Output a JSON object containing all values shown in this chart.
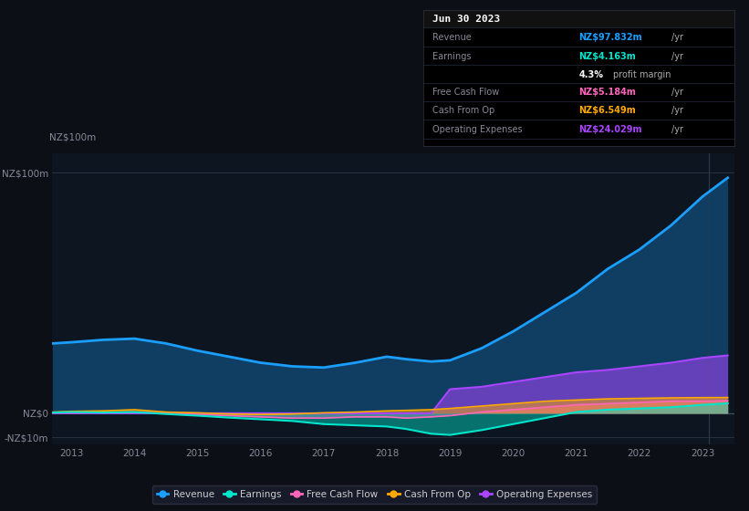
{
  "bg_color": "#0c1016",
  "chart_bg": "#0d1520",
  "info_bg": "#000000",
  "title": "Jun 30 2023",
  "info_box_rows": [
    {
      "label": "Revenue",
      "value": "NZ$97.832m",
      "suffix": " /yr",
      "value_color": "#1a9fff"
    },
    {
      "label": "Earnings",
      "value": "NZ$4.163m",
      "suffix": " /yr",
      "value_color": "#00e5cc"
    },
    {
      "label": "",
      "value": "4.3%",
      "suffix": " profit margin",
      "value_color": "#ffffff"
    },
    {
      "label": "Free Cash Flow",
      "value": "NZ$5.184m",
      "suffix": " /yr",
      "value_color": "#ff66bb"
    },
    {
      "label": "Cash From Op",
      "value": "NZ$6.549m",
      "suffix": " /yr",
      "value_color": "#ffaa00"
    },
    {
      "label": "Operating Expenses",
      "value": "NZ$24.029m",
      "suffix": " /yr",
      "value_color": "#aa44ff"
    }
  ],
  "years": [
    2012.7,
    2013.0,
    2013.5,
    2014.0,
    2014.5,
    2015.0,
    2015.5,
    2016.0,
    2016.5,
    2017.0,
    2017.5,
    2018.0,
    2018.3,
    2018.7,
    2019.0,
    2019.5,
    2020.0,
    2020.5,
    2021.0,
    2021.5,
    2022.0,
    2022.5,
    2023.0,
    2023.4
  ],
  "revenue": [
    29.0,
    29.5,
    30.5,
    31.0,
    29.0,
    26.0,
    23.5,
    21.0,
    19.5,
    19.0,
    21.0,
    23.5,
    22.5,
    21.5,
    22.0,
    27.0,
    34.0,
    42.0,
    50.0,
    60.0,
    68.0,
    78.0,
    90.0,
    97.832
  ],
  "earnings": [
    0.3,
    0.5,
    0.3,
    0.5,
    -0.3,
    -1.0,
    -1.8,
    -2.5,
    -3.2,
    -4.5,
    -5.0,
    -5.5,
    -6.5,
    -8.5,
    -9.0,
    -7.0,
    -4.5,
    -2.0,
    0.5,
    1.5,
    2.0,
    2.5,
    3.5,
    4.163
  ],
  "fcf": [
    0.2,
    0.2,
    0.3,
    0.5,
    0.0,
    -0.5,
    -1.0,
    -1.5,
    -2.0,
    -2.0,
    -1.5,
    -1.5,
    -2.0,
    -1.5,
    -1.0,
    0.5,
    1.5,
    2.5,
    3.5,
    4.0,
    4.5,
    5.0,
    5.0,
    5.184
  ],
  "cashfromop": [
    0.5,
    0.8,
    1.0,
    1.5,
    0.5,
    0.2,
    -0.3,
    -0.5,
    -0.3,
    0.2,
    0.5,
    1.0,
    1.2,
    1.5,
    2.0,
    3.0,
    4.0,
    5.0,
    5.5,
    6.0,
    6.2,
    6.4,
    6.5,
    6.549
  ],
  "opex": [
    0,
    0,
    0,
    0,
    0,
    0,
    0,
    0,
    0,
    0,
    0,
    0,
    0,
    0,
    10.0,
    11.0,
    13.0,
    15.0,
    17.0,
    18.0,
    19.5,
    21.0,
    23.0,
    24.029
  ],
  "revenue_color": "#1a9fff",
  "earnings_color": "#00e5cc",
  "fcf_color": "#ff66bb",
  "cashfromop_color": "#ffaa00",
  "opex_color": "#aa44ff",
  "ylim": [
    -13,
    108
  ],
  "yticks": [
    -10,
    0,
    100
  ],
  "ytick_labels": [
    "-NZ$10m",
    "NZ$0",
    "NZ$100m"
  ],
  "xticks": [
    2013,
    2014,
    2015,
    2016,
    2017,
    2018,
    2019,
    2020,
    2021,
    2022,
    2023
  ],
  "xlim": [
    2012.7,
    2023.5
  ],
  "legend_items": [
    {
      "label": "Revenue",
      "color": "#1a9fff"
    },
    {
      "label": "Earnings",
      "color": "#00e5cc"
    },
    {
      "label": "Free Cash Flow",
      "color": "#ff66bb"
    },
    {
      "label": "Cash From Op",
      "color": "#ffaa00"
    },
    {
      "label": "Operating Expenses",
      "color": "#aa44ff"
    }
  ]
}
